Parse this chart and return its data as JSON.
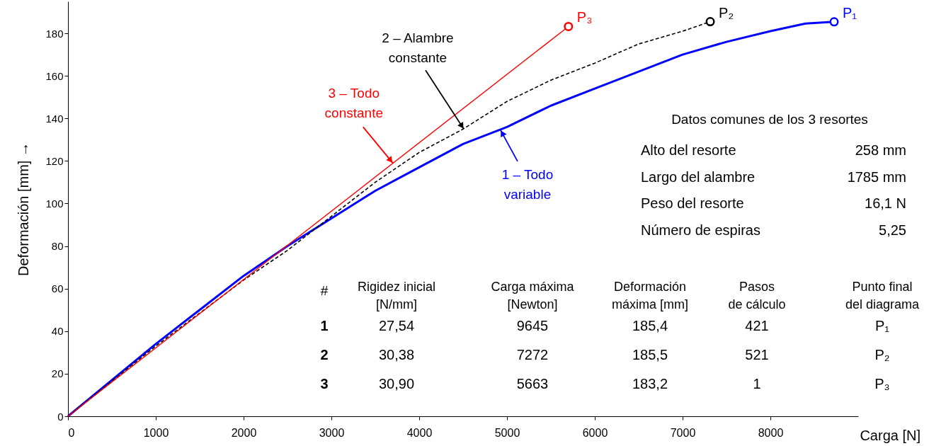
{
  "chart_data": {
    "type": "line",
    "xlabel": "Carga  [N]",
    "ylabel": "Deformación [mm]  →",
    "xlim": [
      0,
      9000
    ],
    "ylim": [
      0,
      195
    ],
    "xticks": [
      0,
      1000,
      2000,
      3000,
      4000,
      5000,
      6000,
      7000,
      8000
    ],
    "yticks": [
      0,
      20,
      40,
      60,
      80,
      100,
      120,
      140,
      160,
      180
    ],
    "series": [
      {
        "color": "#0000ff",
        "line_style": "solid",
        "x": [
          0,
          500,
          1000,
          1500,
          2000,
          2500,
          3000,
          3500,
          4000,
          4500,
          5000,
          5500,
          6000,
          6500,
          7000,
          7500,
          8000,
          8400,
          8726
        ],
        "values": [
          0,
          17,
          34,
          50,
          66,
          80,
          93,
          106,
          117,
          128,
          136,
          146,
          154,
          162,
          170,
          176,
          181,
          184.6,
          185.4
        ]
      },
      {
        "color": "#000000",
        "line_style": "dashed",
        "x": [
          0,
          1000,
          2000,
          2500,
          3000,
          3500,
          4000,
          4500,
          5000,
          5500,
          6000,
          6500,
          7000,
          7315
        ],
        "values": [
          0,
          33,
          64,
          78,
          94,
          110,
          124,
          135,
          148,
          158,
          166,
          175,
          181,
          185.5
        ]
      },
      {
        "color": "#ff0000",
        "line_style": "solid",
        "x": [
          0,
          5700
        ],
        "values": [
          0,
          183.2
        ]
      }
    ],
    "annotations": [
      {
        "text": "1 – Todo\nvariable",
        "x": 4927,
        "y": 134.5
      },
      {
        "text": "2 – Alambre\nconstante",
        "x": 4508,
        "y": 135
      },
      {
        "text": "3 – Todo\nconstante",
        "x": 3700,
        "y": 119
      },
      {
        "text": "P₁",
        "x": 8726,
        "y": 185.4
      },
      {
        "text": "P₂",
        "x": 7315,
        "y": 185.5
      },
      {
        "text": "P₃",
        "x": 5700,
        "y": 183.2
      },
      "Datos comunes de los 3 resortes",
      "Alto del resorte",
      "258 mm",
      "Largo del alambre",
      "1785 mm",
      "Peso del resorte",
      "16,1 N",
      "Número de espiras",
      "5,25",
      "#",
      "Rigidez inicial\n[N/mm]",
      "Carga máxima\n[Newton]",
      "Deformación\nmáxima [mm]",
      "Pasos\nde cálculo",
      "Punto final\ndel diagrama",
      "1",
      "27,54",
      "9645",
      "185,4",
      "421",
      "P₁",
      "2",
      "30,38",
      "7272",
      "185,5",
      "521",
      "P₂",
      "3",
      "30,90",
      "5663",
      "183,2",
      "1",
      "P₃"
    ]
  }
}
